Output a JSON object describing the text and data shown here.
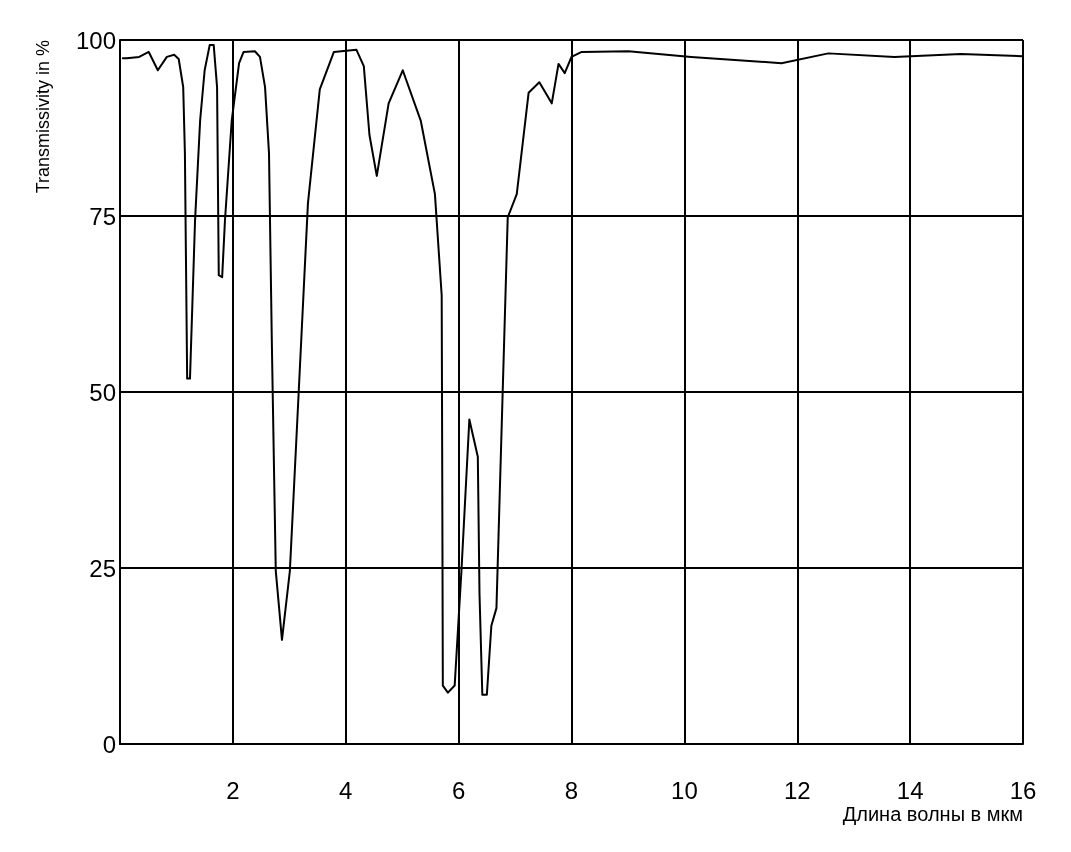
{
  "chart_data": {
    "type": "line",
    "xlabel": "Длина волны в мкм",
    "ylabel": "Transmissivity in %",
    "xlim": [
      0,
      16
    ],
    "xticks": [
      2,
      4,
      6,
      8,
      10,
      12,
      14,
      16
    ],
    "ylim": [
      0,
      100
    ],
    "yticks": [
      0,
      25,
      50,
      75,
      100
    ],
    "grid": true,
    "marker": "none",
    "line_style": "solid",
    "series": [
      {
        "color": "#000000",
        "x": [
          0.05,
          0.12,
          0.34,
          0.51,
          0.67,
          0.83,
          0.96,
          1.04,
          1.12,
          1.15,
          1.19,
          1.24,
          1.33,
          1.42,
          1.5,
          1.59,
          1.66,
          1.72,
          1.75,
          1.81,
          1.86,
          1.98,
          2.11,
          2.19,
          2.39,
          2.48,
          2.57,
          2.64,
          2.69,
          2.76,
          2.87,
          3.01,
          3.17,
          3.33,
          3.54,
          3.79,
          4.19,
          4.32,
          4.42,
          4.55,
          4.76,
          5.01,
          5.33,
          5.58,
          5.7,
          5.71,
          5.72,
          5.81,
          5.93,
          6.05,
          6.19,
          6.34,
          6.37,
          6.42,
          6.5,
          6.58,
          6.67,
          6.87,
          7.03,
          7.24,
          7.43,
          7.65,
          7.77,
          7.88,
          8.0,
          8.18,
          9.01,
          10.12,
          11.72,
          12.55,
          13.72,
          14.9,
          16.0
        ],
        "values": [
          97.4,
          97.4,
          97.6,
          98.3,
          95.7,
          97.6,
          97.9,
          97.3,
          93.3,
          83.9,
          51.9,
          51.9,
          74.4,
          88.6,
          95.7,
          99.3,
          99.3,
          93.3,
          66.6,
          66.3,
          74.4,
          88.6,
          96.7,
          98.3,
          98.4,
          97.6,
          93.3,
          83.9,
          57.2,
          24.6,
          14.8,
          24.6,
          50.6,
          76.8,
          93.0,
          98.3,
          98.6,
          96.3,
          86.5,
          80.7,
          91.0,
          95.7,
          88.5,
          78.1,
          63.7,
          37.6,
          8.3,
          7.3,
          8.3,
          24.6,
          46.1,
          40.8,
          21.3,
          7.0,
          7.0,
          16.8,
          19.3,
          74.8,
          78.1,
          92.5,
          94.0,
          91.0,
          96.6,
          95.3,
          97.6,
          98.3,
          98.4,
          97.6,
          96.7,
          98.1,
          97.6,
          98.0,
          97.7
        ]
      }
    ]
  }
}
